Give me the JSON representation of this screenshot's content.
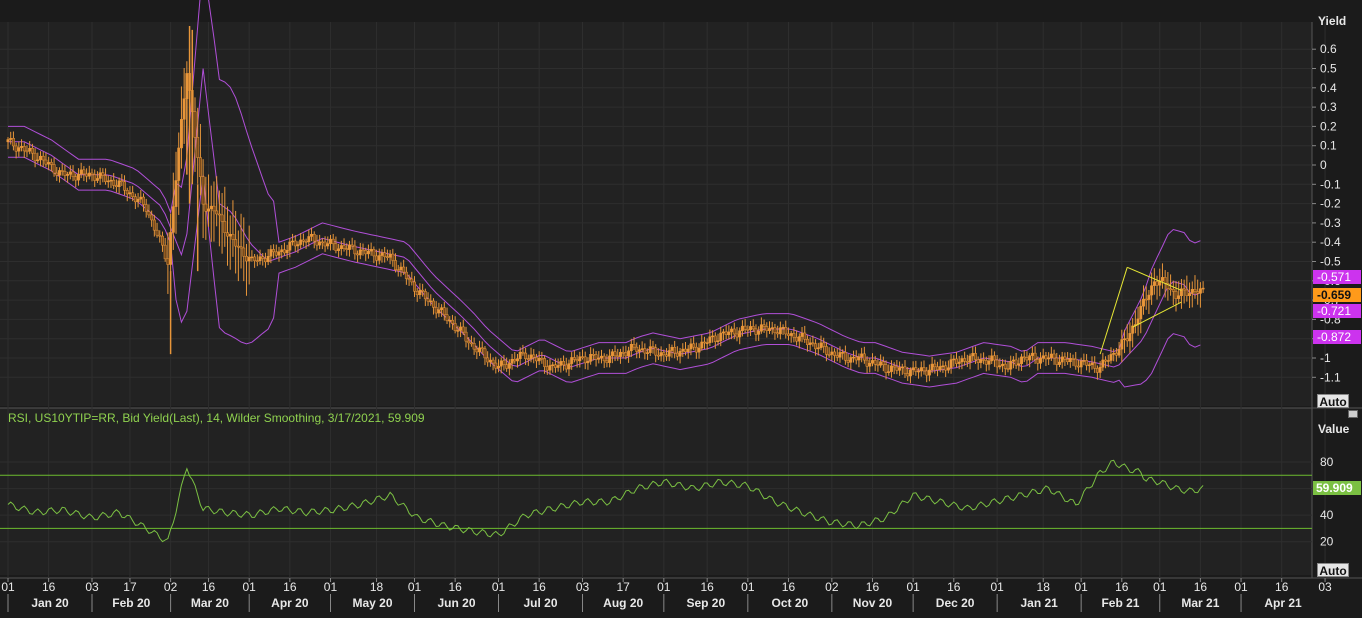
{
  "chart_data": [
    {
      "type": "candlestick",
      "ylabel": "Yield",
      "ylim": [
        -1.2,
        0.7
      ],
      "yticks": [
        0.6,
        0.5,
        0.4,
        0.3,
        0.2,
        0.1,
        0,
        -0.1,
        -0.2,
        -0.3,
        -0.4,
        -0.5,
        -0.6,
        -0.7,
        -0.8,
        -0.9,
        -1,
        -1.1
      ],
      "indicators": [
        "Bollinger Bands",
        "Symmetrical triangle trendlines"
      ],
      "price_tags": [
        {
          "label": "-0.571",
          "color": "#cc33ee"
        },
        {
          "label": "-0.659",
          "color": "#ff9a1a"
        },
        {
          "label": "-0.721",
          "color": "#cc33ee"
        },
        {
          "label": "-0.872",
          "color": "#cc33ee"
        }
      ],
      "close_series": {
        "x_day_index": [
          0,
          10,
          20,
          31,
          41,
          51,
          59,
          66,
          72,
          77,
          83,
          90,
          100,
          110,
          121,
          131,
          141,
          151,
          161,
          166,
          171,
          181,
          191,
          201,
          212,
          222,
          227,
          232,
          242,
          253,
          263,
          273,
          283,
          293,
          303,
          309,
          314,
          324,
          334,
          344,
          354,
          364,
          369,
          374,
          384,
          394,
          403,
          413,
          418,
          423,
          428,
          431,
          436,
          441
        ],
        "values": [
          0.12,
          0.05,
          -0.05,
          -0.05,
          -0.1,
          -0.22,
          -0.5,
          0.5,
          -0.2,
          -0.25,
          -0.4,
          -0.5,
          -0.45,
          -0.38,
          -0.42,
          -0.45,
          -0.48,
          -0.65,
          -0.78,
          -0.85,
          -0.93,
          -1.05,
          -0.98,
          -1.05,
          -1.0,
          -1.0,
          -0.97,
          -0.95,
          -0.98,
          -0.95,
          -0.88,
          -0.85,
          -0.85,
          -0.9,
          -0.97,
          -1.0,
          -1.0,
          -1.05,
          -1.07,
          -1.05,
          -1.0,
          -1.02,
          -1.05,
          -1.0,
          -1.0,
          -1.02,
          -1.05,
          -0.9,
          -0.75,
          -0.6,
          -0.62,
          -0.68,
          -0.65,
          -0.66
        ]
      }
    },
    {
      "type": "line",
      "title": "RSI, US10YTIP=RR, Bid Yield(Last),  14, Wilder Smoothing, 3/17/2021, 59.909",
      "ylabel": "Value",
      "ylim": [
        10,
        90
      ],
      "yticks": [
        80,
        60,
        40,
        20
      ],
      "reference_lines": [
        70,
        30
      ],
      "last_value": "59.909",
      "series": [
        {
          "x_day_index": [
            0,
            10,
            20,
            31,
            41,
            51,
            59,
            64,
            66,
            69,
            72,
            80,
            90,
            100,
            110,
            120,
            130,
            141,
            151,
            161,
            171,
            181,
            191,
            201,
            212,
            222,
            232,
            242,
            253,
            263,
            273,
            283,
            293,
            303,
            314,
            324,
            334,
            344,
            354,
            364,
            374,
            384,
            394,
            403,
            408,
            413,
            418,
            420,
            425,
            431,
            436,
            441
          ],
          "values": [
            48,
            42,
            44,
            38,
            42,
            30,
            20,
            60,
            77,
            60,
            45,
            42,
            40,
            45,
            42,
            44,
            48,
            55,
            38,
            32,
            28,
            25,
            40,
            45,
            50,
            50,
            60,
            65,
            60,
            65,
            62,
            50,
            42,
            35,
            32,
            38,
            55,
            50,
            45,
            50,
            55,
            60,
            48,
            72,
            80,
            75,
            72,
            67,
            65,
            60,
            58,
            59.909
          ]
        }
      ]
    }
  ],
  "x_axis": {
    "day_labels": [
      "01",
      "16",
      "03",
      "17",
      "02",
      "16",
      "01",
      "16",
      "01",
      "18",
      "01",
      "16",
      "01",
      "16",
      "03",
      "17",
      "01",
      "16",
      "01",
      "16",
      "02",
      "16",
      "01",
      "16",
      "01",
      "18",
      "01",
      "16",
      "01",
      "16",
      "01",
      "16",
      "03"
    ],
    "month_labels": [
      "Jan 20",
      "Feb 20",
      "Mar 20",
      "Apr 20",
      "May 20",
      "Jun 20",
      "Jul 20",
      "Aug 20",
      "Sep 20",
      "Oct 20",
      "Nov 20",
      "Dec 20",
      "Jan 21",
      "Feb 21",
      "Mar 21",
      "Apr 21"
    ]
  },
  "axis_titles": {
    "price": "Yield",
    "rsi": "Value"
  },
  "buttons": {
    "auto_price": "Auto",
    "auto_rsi": "Auto"
  },
  "colors": {
    "background": "#1b1b1b",
    "grid": "#2e2e2e",
    "candle": "#e8963a",
    "bollinger": "#b04fd8",
    "trendline": "#e6e634",
    "rsi": "#7bc043",
    "rsi_ref": "#6dbb2e",
    "axis_text": "#e8e8e8"
  }
}
